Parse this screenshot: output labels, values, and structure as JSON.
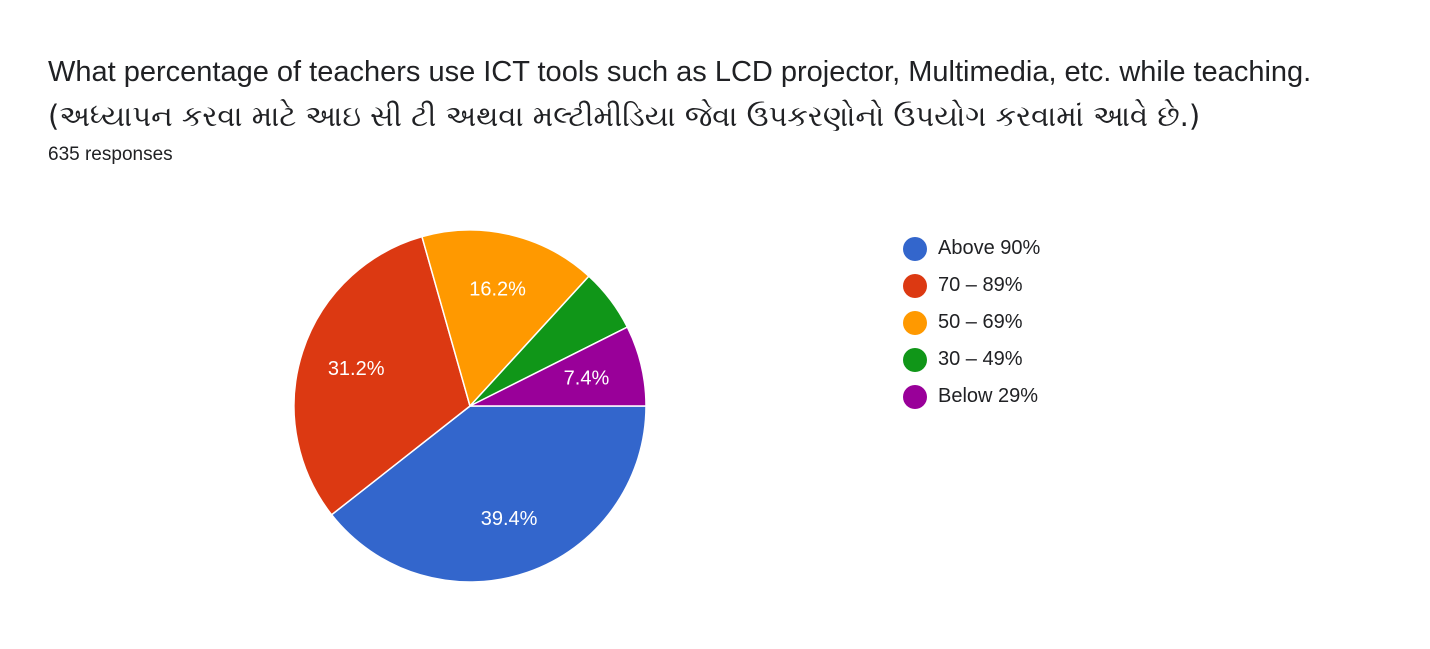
{
  "chart_data": {
    "type": "pie",
    "title": "What percentage of teachers use ICT tools such as LCD projector, Multimedia, etc. while teaching.",
    "subtitle": "(અધ્યાપન કરવા માટે આઇ સી ટી અથવા મલ્ટીમીડિયા જેવા ઉપકરણોનો ઉપયોગ કરવામાં આવે છે.)",
    "responses_text": "635 responses",
    "legend_position": "right",
    "categories": [
      "Above 90%",
      "70 – 89%",
      "50 – 69%",
      "30 – 49%",
      "Below 29%"
    ],
    "values": [
      39.4,
      31.2,
      16.2,
      5.8,
      7.4
    ],
    "data_labels": [
      "39.4%",
      "31.2%",
      "16.2%",
      "",
      "7.4%"
    ],
    "colors": [
      "#3366cc",
      "#dc3912",
      "#ff9900",
      "#109618",
      "#990099"
    ]
  }
}
